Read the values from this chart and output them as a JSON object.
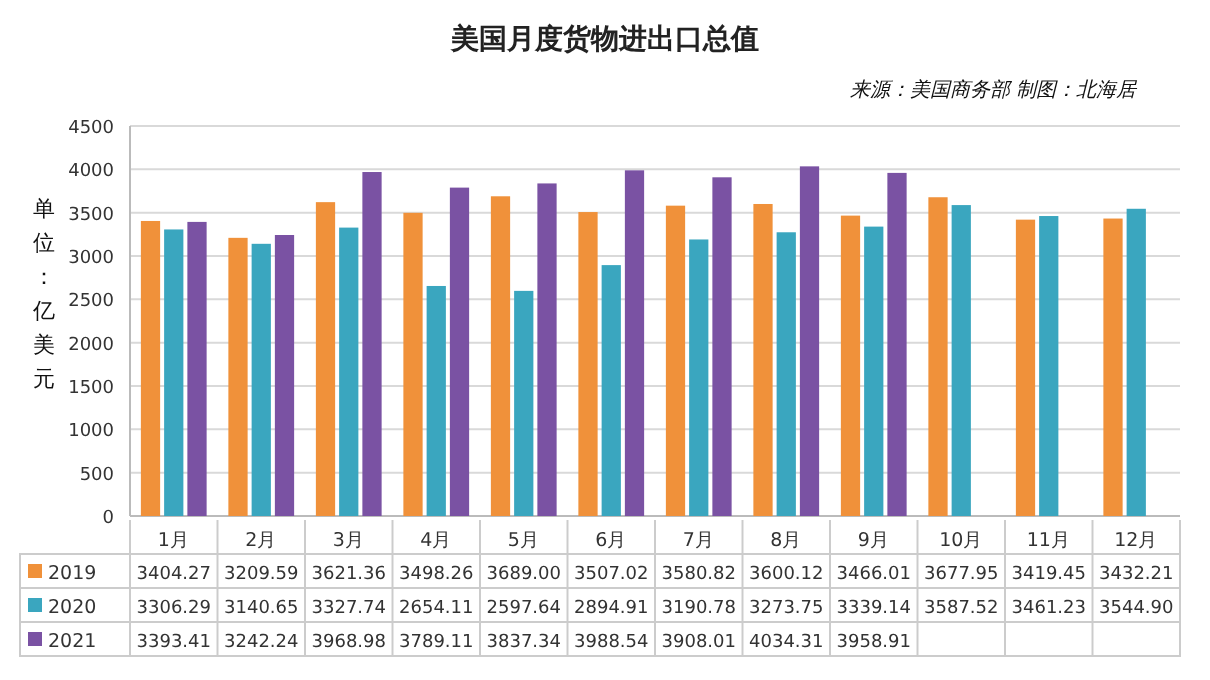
{
  "chart_data": {
    "type": "bar",
    "title": "美国月度货物进出口总值",
    "annotations": [
      "来源：美国商务部 制图：北海居"
    ],
    "ylabel": "单位：亿美元",
    "categories": [
      "1月",
      "2月",
      "3月",
      "4月",
      "5月",
      "6月",
      "7月",
      "8月",
      "9月",
      "10月",
      "11月",
      "12月"
    ],
    "series": [
      {
        "name": "2019",
        "color": "#f0913a",
        "values": [
          3404.27,
          3209.59,
          3621.36,
          3498.26,
          3689.0,
          3507.02,
          3580.82,
          3600.12,
          3466.01,
          3677.95,
          3419.45,
          3432.21
        ],
        "value_labels": [
          "3404.27",
          "3209.59",
          "3621.36",
          "3498.26",
          "3689.00",
          "3507.02",
          "3580.82",
          "3600.12",
          "3466.01",
          "3677.95",
          "3419.45",
          "3432.21"
        ]
      },
      {
        "name": "2020",
        "color": "#3aa6bf",
        "values": [
          3306.29,
          3140.65,
          3327.74,
          2654.11,
          2597.64,
          2894.91,
          3190.78,
          3273.75,
          3339.14,
          3587.52,
          3461.23,
          3544.9
        ],
        "value_labels": [
          "3306.29",
          "3140.65",
          "3327.74",
          "2654.11",
          "2597.64",
          "2894.91",
          "3190.78",
          "3273.75",
          "3339.14",
          "3587.52",
          "3461.23",
          "3544.90"
        ]
      },
      {
        "name": "2021",
        "color": "#7a52a3",
        "values": [
          3393.41,
          3242.24,
          3968.98,
          3789.11,
          3837.34,
          3988.54,
          3908.01,
          4034.31,
          3958.91,
          null,
          null,
          null
        ],
        "value_labels": [
          "3393.41",
          "3242.24",
          "3968.98",
          "3789.11",
          "3837.34",
          "3988.54",
          "3908.01",
          "4034.31",
          "3958.91",
          null,
          null,
          null
        ]
      }
    ],
    "ylim": [
      0,
      4500
    ],
    "yticks": [
      0,
      500,
      1000,
      1500,
      2000,
      2500,
      3000,
      3500,
      4000,
      4500
    ],
    "grid": "y",
    "legend": "bottom"
  }
}
